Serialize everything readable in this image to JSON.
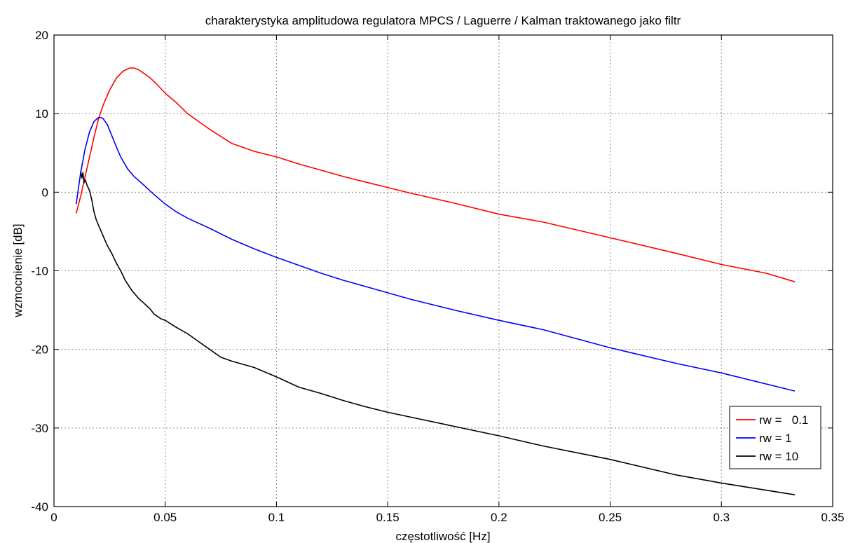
{
  "chart_data": {
    "type": "line",
    "title": "charakterystyka amplitudowa regulatora MPCS / Laguerre / Kalman traktowanego jako filtr",
    "xlabel": "częstotliwość [Hz]",
    "ylabel": "wzmocnienie [dB]",
    "xlim": [
      0,
      0.35
    ],
    "ylim": [
      -40,
      20
    ],
    "xticks": [
      0,
      0.05,
      0.1,
      0.15,
      0.2,
      0.25,
      0.3,
      0.35
    ],
    "xtick_labels": [
      "0",
      "0.05",
      "0.1",
      "0.15",
      "0.2",
      "0.25",
      "0.3",
      "0.35"
    ],
    "yticks": [
      -40,
      -30,
      -20,
      -10,
      0,
      10,
      20
    ],
    "ytick_labels": [
      "-40",
      "-30",
      "-20",
      "-10",
      "0",
      "10",
      "20"
    ],
    "grid": true,
    "legend_position": "bottom-right",
    "series": [
      {
        "name": "rw =   0.1",
        "color": "#ff0000",
        "x": [
          0.01,
          0.012,
          0.014,
          0.016,
          0.018,
          0.02,
          0.022,
          0.025,
          0.028,
          0.031,
          0.034,
          0.036,
          0.038,
          0.04,
          0.043,
          0.046,
          0.05,
          0.055,
          0.06,
          0.065,
          0.07,
          0.08,
          0.09,
          0.1,
          0.11,
          0.12,
          0.13,
          0.14,
          0.15,
          0.16,
          0.18,
          0.2,
          0.22,
          0.25,
          0.28,
          0.3,
          0.32,
          0.333
        ],
        "y": [
          -2.7,
          -0.5,
          2.0,
          4.5,
          7.0,
          9.3,
          11.0,
          13.0,
          14.5,
          15.4,
          15.8,
          15.8,
          15.6,
          15.2,
          14.6,
          13.8,
          12.6,
          11.4,
          10.0,
          9.0,
          8.0,
          6.2,
          5.2,
          4.5,
          3.6,
          2.8,
          2.0,
          1.3,
          0.6,
          -0.1,
          -1.4,
          -2.8,
          -3.8,
          -5.8,
          -7.8,
          -9.2,
          -10.3,
          -11.4
        ]
      },
      {
        "name": "rw = 1",
        "color": "#0000ff",
        "x": [
          0.01,
          0.012,
          0.014,
          0.016,
          0.018,
          0.02,
          0.021,
          0.022,
          0.024,
          0.026,
          0.028,
          0.03,
          0.033,
          0.036,
          0.04,
          0.045,
          0.05,
          0.055,
          0.06,
          0.07,
          0.08,
          0.09,
          0.1,
          0.11,
          0.12,
          0.13,
          0.14,
          0.15,
          0.16,
          0.18,
          0.2,
          0.22,
          0.25,
          0.28,
          0.3,
          0.333
        ],
        "y": [
          -1.5,
          2.5,
          5.5,
          7.7,
          9.0,
          9.5,
          9.5,
          9.4,
          8.6,
          7.2,
          5.8,
          4.5,
          3.0,
          2.0,
          1.0,
          -0.3,
          -1.5,
          -2.5,
          -3.3,
          -4.6,
          -6.0,
          -7.2,
          -8.3,
          -9.3,
          -10.3,
          -11.2,
          -12.0,
          -12.8,
          -13.6,
          -15.0,
          -16.3,
          -17.5,
          -19.8,
          -21.8,
          -23.0,
          -25.3
        ]
      },
      {
        "name": "rw = 10",
        "color": "#000000",
        "x": [
          0.012,
          0.0125,
          0.013,
          0.0135,
          0.014,
          0.015,
          0.016,
          0.017,
          0.018,
          0.019,
          0.02,
          0.022,
          0.024,
          0.026,
          0.028,
          0.03,
          0.032,
          0.035,
          0.038,
          0.04,
          0.043,
          0.045,
          0.048,
          0.05,
          0.055,
          0.06,
          0.065,
          0.07,
          0.075,
          0.08,
          0.09,
          0.1,
          0.11,
          0.12,
          0.13,
          0.14,
          0.15,
          0.16,
          0.18,
          0.2,
          0.22,
          0.25,
          0.28,
          0.3,
          0.333
        ],
        "y": [
          2.7,
          1.8,
          2.5,
          1.2,
          1.6,
          0.8,
          0.2,
          -1.0,
          -2.5,
          -3.5,
          -4.2,
          -5.5,
          -6.8,
          -7.8,
          -9.0,
          -10.0,
          -11.2,
          -12.5,
          -13.5,
          -14.0,
          -14.8,
          -15.5,
          -16.1,
          -16.3,
          -17.2,
          -18.0,
          -19.0,
          -20.0,
          -21.0,
          -21.5,
          -22.3,
          -23.5,
          -24.8,
          -25.6,
          -26.5,
          -27.3,
          -28.0,
          -28.6,
          -29.8,
          -31.0,
          -32.3,
          -34.0,
          -36.0,
          -37.0,
          -38.5
        ]
      }
    ]
  }
}
